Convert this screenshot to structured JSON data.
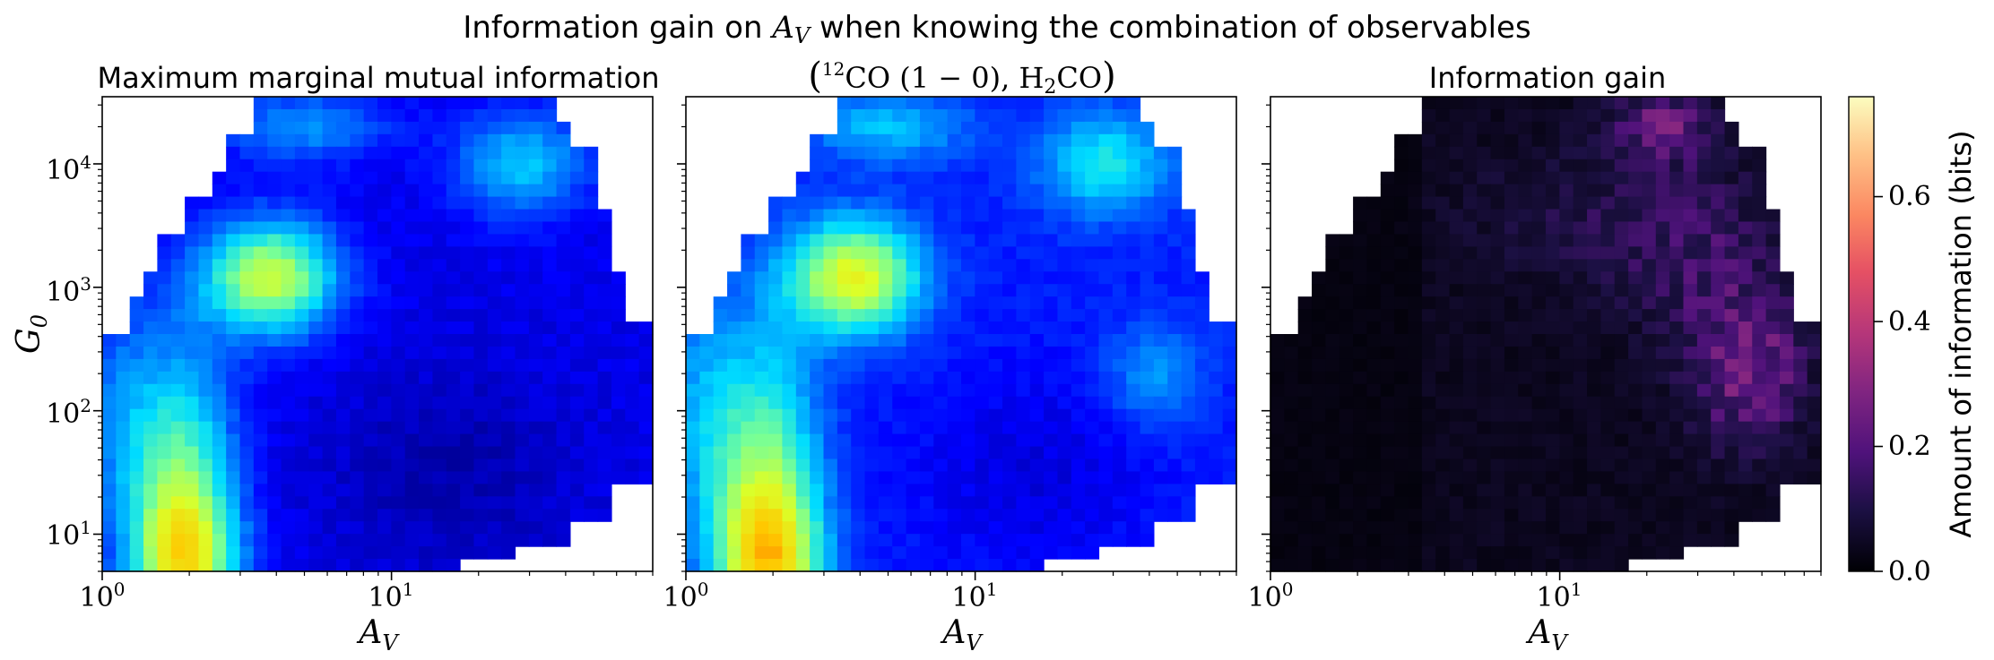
{
  "figure": {
    "title_prefix": "Information gain on ",
    "title_math": "A",
    "title_math_sub": "V",
    "title_suffix": " when knowing the combination of observables"
  },
  "chart_data": [
    {
      "type": "heatmap",
      "title": "Maximum marginal mutual information",
      "xlabel": "A_V",
      "ylabel": "G_0",
      "x_scale": "log",
      "y_scale": "log",
      "xlim": [
        1,
        80
      ],
      "ylim": [
        5,
        35000
      ],
      "colormap": "jet",
      "x_ticks": [
        "10^0",
        "10^1"
      ],
      "y_ticks": [
        "10^1",
        "10^2",
        "10^3",
        "10^4"
      ],
      "peak": {
        "A_V": 3.8,
        "G_0": 1200,
        "value": 0.72
      },
      "description_of_features": [
        "yellow-green band at A_V≈1.5–3 spanning G_0 10^1–10^3",
        "peak near A_V≈3.8, G_0≈10^3",
        "cyan region near A_V≈25–35, G_0≈10^4"
      ]
    },
    {
      "type": "heatmap",
      "title_parts": {
        "open": "(",
        "sup": "12",
        "co": "CO",
        "transition": " (1 − 0), ",
        "h": "H",
        "sub": "2",
        "co2": "CO",
        "close": ")"
      },
      "xlabel": "A_V",
      "x_scale": "log",
      "y_scale": "log",
      "xlim": [
        1,
        80
      ],
      "ylim": [
        5,
        35000
      ],
      "colormap": "jet",
      "x_ticks": [
        "10^0",
        "10^1"
      ],
      "peak": {
        "A_V": 3.8,
        "G_0": 1200,
        "value": 0.76
      }
    },
    {
      "type": "heatmap",
      "title": "Information gain",
      "xlabel": "A_V",
      "x_scale": "log",
      "y_scale": "log",
      "xlim": [
        1,
        80
      ],
      "ylim": [
        5,
        35000
      ],
      "colormap": "magma",
      "x_ticks": [
        "10^0",
        "10^1"
      ],
      "hotspots": [
        {
          "A_V": 45,
          "G_0": 200,
          "value": 0.3
        },
        {
          "A_V": 22,
          "G_0": 20000,
          "value": 0.28
        }
      ]
    }
  ],
  "colorbar": {
    "label": "Amount of information (bits)",
    "ticks": [
      "0.0",
      "0.2",
      "0.4",
      "0.6"
    ],
    "tick_values": [
      0.0,
      0.2,
      0.4,
      0.6
    ],
    "vmin": 0.0,
    "vmax": 0.76,
    "colormap": "magma"
  },
  "tick_text": {
    "base": "10",
    "exp0": "0",
    "exp1": "1",
    "exp2": "2",
    "exp3": "3",
    "exp4": "4"
  },
  "axis_text": {
    "x_main": "A",
    "x_sub": "V",
    "y_main": "G",
    "y_sub": "0"
  }
}
